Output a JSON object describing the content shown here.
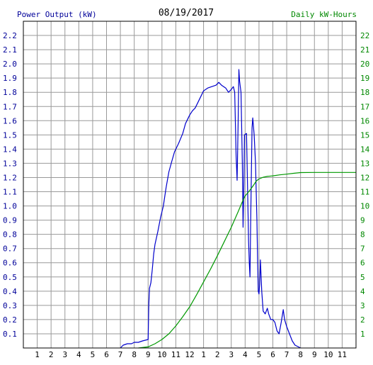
{
  "chart_data": {
    "type": "line",
    "title": "08/19/2017",
    "left_axis_label": "Power Output (kW)",
    "right_axis_label": "Daily kW-Hours",
    "x_tick_labels": [
      "1",
      "2",
      "3",
      "4",
      "5",
      "6",
      "7",
      "8",
      "9",
      "10",
      "11",
      "12",
      "1",
      "2",
      "3",
      "4",
      "5",
      "6",
      "7",
      "8",
      "9",
      "10",
      "11"
    ],
    "x_range_hours": [
      0,
      24
    ],
    "left_ylim": [
      0,
      2.3
    ],
    "left_ticks": [
      "0.1",
      "0.2",
      "0.3",
      "0.4",
      "0.5",
      "0.6",
      "0.7",
      "0.8",
      "0.9",
      "1.0",
      "1.1",
      "1.2",
      "1.3",
      "1.4",
      "1.5",
      "1.6",
      "1.7",
      "1.8",
      "1.9",
      "2.0",
      "2.1",
      "2.2"
    ],
    "right_ylim": [
      0,
      23
    ],
    "right_ticks": [
      "1",
      "2",
      "3",
      "4",
      "5",
      "6",
      "7",
      "8",
      "9",
      "10",
      "11",
      "12",
      "13",
      "14",
      "15",
      "16",
      "17",
      "18",
      "19",
      "20",
      "21",
      "22"
    ],
    "grid": true,
    "colors": {
      "power": "#0000cc",
      "energy": "#009900",
      "left_axis_text": "#000099",
      "right_axis_text": "#008800",
      "grid": "#999999",
      "frame": "#000000"
    },
    "series": [
      {
        "name": "Power Output (kW)",
        "axis": "left",
        "points": [
          [
            7.0,
            0.0
          ],
          [
            7.2,
            0.02
          ],
          [
            7.5,
            0.03
          ],
          [
            7.8,
            0.03
          ],
          [
            8.0,
            0.04
          ],
          [
            8.3,
            0.04
          ],
          [
            8.6,
            0.05
          ],
          [
            9.0,
            0.06
          ],
          [
            9.05,
            0.3
          ],
          [
            9.1,
            0.42
          ],
          [
            9.2,
            0.46
          ],
          [
            9.3,
            0.55
          ],
          [
            9.4,
            0.66
          ],
          [
            9.5,
            0.73
          ],
          [
            9.7,
            0.82
          ],
          [
            9.9,
            0.92
          ],
          [
            10.1,
            1.0
          ],
          [
            10.3,
            1.13
          ],
          [
            10.5,
            1.24
          ],
          [
            10.7,
            1.31
          ],
          [
            10.9,
            1.38
          ],
          [
            11.2,
            1.44
          ],
          [
            11.5,
            1.51
          ],
          [
            11.7,
            1.58
          ],
          [
            12.0,
            1.64
          ],
          [
            12.2,
            1.67
          ],
          [
            12.4,
            1.69
          ],
          [
            12.6,
            1.73
          ],
          [
            12.8,
            1.77
          ],
          [
            13.0,
            1.81
          ],
          [
            13.3,
            1.83
          ],
          [
            13.6,
            1.84
          ],
          [
            13.9,
            1.85
          ],
          [
            14.1,
            1.87
          ],
          [
            14.3,
            1.85
          ],
          [
            14.6,
            1.83
          ],
          [
            14.8,
            1.8
          ],
          [
            15.0,
            1.82
          ],
          [
            15.15,
            1.84
          ],
          [
            15.25,
            1.8
          ],
          [
            15.35,
            1.35
          ],
          [
            15.42,
            1.18
          ],
          [
            15.5,
            1.6
          ],
          [
            15.55,
            1.96
          ],
          [
            15.6,
            1.88
          ],
          [
            15.7,
            1.8
          ],
          [
            15.8,
            1.3
          ],
          [
            15.85,
            0.85
          ],
          [
            15.9,
            1.1
          ],
          [
            15.95,
            1.5
          ],
          [
            16.1,
            1.51
          ],
          [
            16.2,
            1.02
          ],
          [
            16.25,
            0.75
          ],
          [
            16.3,
            0.6
          ],
          [
            16.35,
            0.5
          ],
          [
            16.4,
            0.9
          ],
          [
            16.5,
            1.55
          ],
          [
            16.55,
            1.62
          ],
          [
            16.65,
            1.5
          ],
          [
            16.75,
            1.3
          ],
          [
            16.85,
            0.9
          ],
          [
            16.9,
            0.6
          ],
          [
            16.95,
            0.4
          ],
          [
            17.0,
            0.38
          ],
          [
            17.05,
            0.45
          ],
          [
            17.1,
            0.62
          ],
          [
            17.2,
            0.4
          ],
          [
            17.3,
            0.26
          ],
          [
            17.45,
            0.24
          ],
          [
            17.6,
            0.28
          ],
          [
            17.7,
            0.24
          ],
          [
            17.85,
            0.2
          ],
          [
            18.0,
            0.2
          ],
          [
            18.15,
            0.18
          ],
          [
            18.3,
            0.12
          ],
          [
            18.45,
            0.1
          ],
          [
            18.6,
            0.18
          ],
          [
            18.75,
            0.27
          ],
          [
            18.85,
            0.2
          ],
          [
            19.0,
            0.15
          ],
          [
            19.2,
            0.1
          ],
          [
            19.4,
            0.05
          ],
          [
            19.6,
            0.02
          ],
          [
            19.8,
            0.01
          ],
          [
            20.0,
            0.0
          ]
        ]
      },
      {
        "name": "Daily kW-Hours",
        "axis": "right",
        "points": [
          [
            8.3,
            0.0
          ],
          [
            9.0,
            0.08
          ],
          [
            9.5,
            0.3
          ],
          [
            10.0,
            0.6
          ],
          [
            10.5,
            1.0
          ],
          [
            11.0,
            1.55
          ],
          [
            11.5,
            2.2
          ],
          [
            12.0,
            2.9
          ],
          [
            12.5,
            3.75
          ],
          [
            13.0,
            4.65
          ],
          [
            13.5,
            5.55
          ],
          [
            14.0,
            6.5
          ],
          [
            14.5,
            7.5
          ],
          [
            15.0,
            8.5
          ],
          [
            15.5,
            9.6
          ],
          [
            15.8,
            10.3
          ],
          [
            16.0,
            10.7
          ],
          [
            16.3,
            11.05
          ],
          [
            16.6,
            11.45
          ],
          [
            16.8,
            11.75
          ],
          [
            17.0,
            11.9
          ],
          [
            17.3,
            12.02
          ],
          [
            17.6,
            12.08
          ],
          [
            18.0,
            12.12
          ],
          [
            18.5,
            12.19
          ],
          [
            19.0,
            12.24
          ],
          [
            19.5,
            12.3
          ],
          [
            20.0,
            12.35
          ],
          [
            21.0,
            12.36
          ],
          [
            22.0,
            12.36
          ],
          [
            23.0,
            12.36
          ],
          [
            24.0,
            12.36
          ]
        ]
      }
    ]
  }
}
